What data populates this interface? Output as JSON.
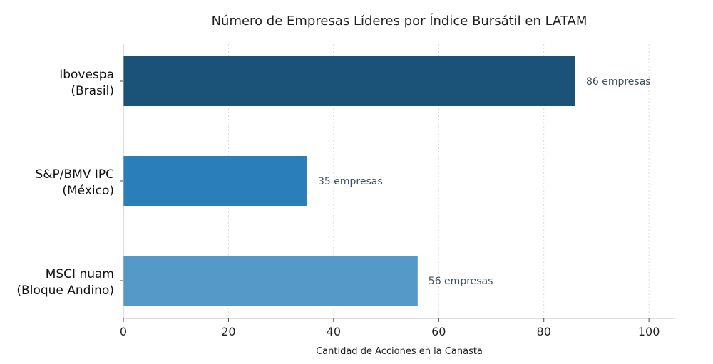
{
  "chart_data": {
    "type": "bar",
    "orientation": "horizontal",
    "title": "Número de Empresas Líderes por Índice Bursátil en LATAM",
    "xlabel": "Cantidad de Acciones en la Canasta",
    "ylabel": "",
    "xlim": [
      0,
      105
    ],
    "x_ticks": [
      0,
      20,
      40,
      60,
      80,
      100
    ],
    "grid": "vertical dotted",
    "legend": "none",
    "categories": [
      [
        "Ibovespa",
        "(Brasil)"
      ],
      [
        "S&P/BMV IPC",
        "(México)"
      ],
      [
        "MSCI nuam",
        "(Bloque Andino)"
      ]
    ],
    "values": [
      86,
      35,
      56
    ],
    "data_labels": [
      "86 empresas",
      "35 empresas",
      "56 empresas"
    ],
    "colors": [
      "#1b5277",
      "#2a7fba",
      "#5499c7"
    ]
  }
}
